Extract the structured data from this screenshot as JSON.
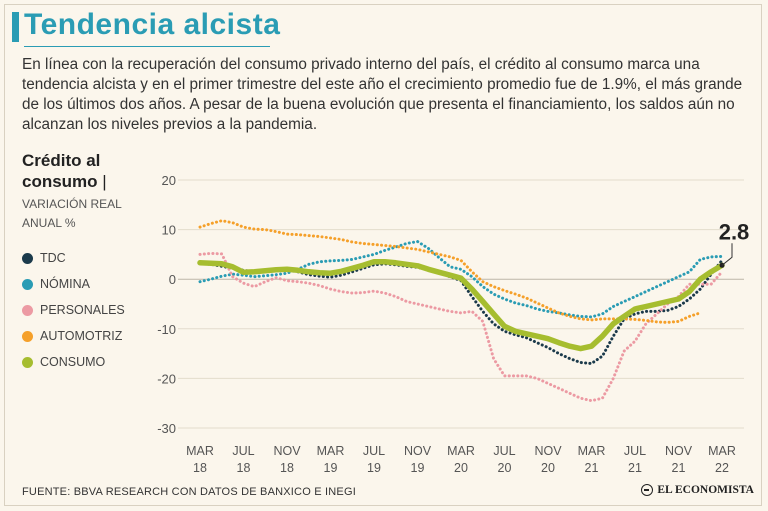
{
  "header": {
    "title": "Tendencia alcista",
    "intro": "En línea con la recuperación del consumo privado interno del país, el crédito al consumo marca una tendencia alcista y en el primer trimestre del este año el crecimiento promedio fue de 1.9%, el más grande de los últimos dos años. A pesar de la buena evolución que presenta el financiamiento, los saldos aún no alcanzan los niveles previos a la pandemia."
  },
  "side": {
    "title_line1": "Crédito al",
    "title_line2": "consumo",
    "separator": "|",
    "subtitle_line1": "VARIACIÓN REAL",
    "subtitle_line2": "ANUAL %"
  },
  "legend": [
    {
      "label": "TDC",
      "color": "#1b3a4b"
    },
    {
      "label": "NÓMINA",
      "color": "#2a9cb4"
    },
    {
      "label": "PERSONALES",
      "color": "#ec9aa3"
    },
    {
      "label": "AUTOMOTRIZ",
      "color": "#f5a02a"
    },
    {
      "label": "CONSUMO",
      "color": "#a6bd2f"
    }
  ],
  "footer": {
    "source": "FUENTE: BBVA RESEARCH CON DATOS DE BANXICO E INEGI",
    "brand": "EL ECONOMISTA"
  },
  "chart_data": {
    "type": "line",
    "title": "Crédito al consumo",
    "ylabel": "Variación real anual %",
    "ylim": [
      -30,
      20
    ],
    "yticks": [
      20,
      10,
      0,
      -10,
      -20,
      -30
    ],
    "xlim": [
      0,
      48
    ],
    "xticks": [
      {
        "pos": 0,
        "l1": "MAR",
        "l2": "18"
      },
      {
        "pos": 4,
        "l1": "JUL",
        "l2": "18"
      },
      {
        "pos": 8,
        "l1": "NOV",
        "l2": "18"
      },
      {
        "pos": 12,
        "l1": "MAR",
        "l2": "19"
      },
      {
        "pos": 16,
        "l1": "JUL",
        "l2": "19"
      },
      {
        "pos": 20,
        "l1": "NOV",
        "l2": "19"
      },
      {
        "pos": 24,
        "l1": "MAR",
        "l2": "20"
      },
      {
        "pos": 28,
        "l1": "JUL",
        "l2": "20"
      },
      {
        "pos": 32,
        "l1": "NOV",
        "l2": "20"
      },
      {
        "pos": 36,
        "l1": "MAR",
        "l2": "21"
      },
      {
        "pos": 40,
        "l1": "JUL",
        "l2": "21"
      },
      {
        "pos": 44,
        "l1": "NOV",
        "l2": "21"
      },
      {
        "pos": 48,
        "l1": "MAR",
        "l2": "22"
      }
    ],
    "annotation": {
      "text": "2.8",
      "series": "CONSUMO",
      "x": 48,
      "y": 2.8
    },
    "series": [
      {
        "name": "TDC",
        "color": "#1b3a4b",
        "style": "dotted",
        "x": [
          0,
          1,
          2,
          3,
          4,
          5,
          6,
          7,
          8,
          9,
          10,
          11,
          12,
          13,
          14,
          15,
          16,
          17,
          18,
          19,
          20,
          21,
          22,
          23,
          24,
          25,
          26,
          27,
          28,
          29,
          30,
          31,
          32,
          33,
          34,
          35,
          36,
          37,
          38,
          39,
          40,
          41,
          42,
          43,
          44,
          45,
          46,
          47,
          48
        ],
        "y": [
          3.2,
          3.0,
          2.6,
          2.2,
          1.8,
          1.5,
          1.6,
          1.8,
          1.9,
          1.5,
          0.9,
          0.6,
          0.4,
          0.8,
          1.5,
          2.2,
          2.9,
          3.1,
          2.9,
          2.6,
          2.4,
          1.9,
          1.2,
          0.5,
          -0.3,
          -3.5,
          -6.5,
          -9.0,
          -10.5,
          -11.2,
          -11.8,
          -12.8,
          -13.8,
          -15.0,
          -16.0,
          -16.8,
          -17.0,
          -15.5,
          -11.5,
          -8.0,
          -7.0,
          -6.5,
          -6.5,
          -6.3,
          -5.5,
          -4.0,
          -2.0,
          1.0,
          3.8
        ]
      },
      {
        "name": "NÓMINA",
        "color": "#2a9cb4",
        "style": "dotted",
        "x": [
          0,
          1,
          2,
          3,
          4,
          5,
          6,
          7,
          8,
          9,
          10,
          11,
          12,
          13,
          14,
          15,
          16,
          17,
          18,
          19,
          20,
          21,
          22,
          23,
          24,
          25,
          26,
          27,
          28,
          29,
          30,
          31,
          32,
          33,
          34,
          35,
          36,
          37,
          38,
          39,
          40,
          41,
          42,
          43,
          44,
          45,
          46,
          47,
          48
        ],
        "y": [
          -0.5,
          0.0,
          0.6,
          1.0,
          0.8,
          0.5,
          0.7,
          0.9,
          1.2,
          2.0,
          3.0,
          3.5,
          3.7,
          3.8,
          4.0,
          4.5,
          5.0,
          5.8,
          6.5,
          7.2,
          7.6,
          6.2,
          4.3,
          2.5,
          2.0,
          0.5,
          -1.5,
          -3.0,
          -4.0,
          -4.8,
          -5.3,
          -6.0,
          -6.5,
          -6.8,
          -7.2,
          -7.5,
          -7.6,
          -7.0,
          -5.5,
          -4.5,
          -3.5,
          -2.5,
          -1.5,
          -0.5,
          0.5,
          1.5,
          4.0,
          4.5,
          4.6
        ]
      },
      {
        "name": "PERSONALES",
        "color": "#ec9aa3",
        "style": "dotted",
        "x": [
          0,
          1,
          2,
          3,
          4,
          5,
          6,
          7,
          8,
          9,
          10,
          11,
          12,
          13,
          14,
          15,
          16,
          17,
          18,
          19,
          20,
          21,
          22,
          23,
          24,
          25,
          26,
          27,
          28,
          29,
          30,
          31,
          32,
          33,
          34,
          35,
          36,
          37,
          38,
          39,
          40,
          41,
          42,
          43,
          44,
          45,
          46,
          47,
          48
        ],
        "y": [
          5.0,
          5.2,
          5.1,
          0.5,
          -0.8,
          -1.5,
          -0.5,
          0.3,
          -0.3,
          -0.5,
          -0.8,
          -1.3,
          -2.0,
          -2.5,
          -2.8,
          -2.7,
          -2.4,
          -2.8,
          -3.5,
          -4.5,
          -5.0,
          -5.5,
          -6.0,
          -6.5,
          -6.8,
          -6.5,
          -8.5,
          -16.0,
          -19.5,
          -19.5,
          -19.5,
          -20.0,
          -21.0,
          -22.0,
          -23.0,
          -24.0,
          -24.5,
          -24.0,
          -20.0,
          -14.5,
          -12.5,
          -9.0,
          -7.0,
          -5.0,
          -3.5,
          -1.0,
          -1.0,
          -1.0,
          1.5
        ]
      },
      {
        "name": "AUTOMOTRIZ",
        "color": "#f5a02a",
        "style": "dotted",
        "x": [
          0,
          1,
          2,
          3,
          4,
          5,
          6,
          7,
          8,
          9,
          10,
          11,
          12,
          13,
          14,
          15,
          16,
          17,
          18,
          19,
          20,
          21,
          22,
          23,
          24,
          25,
          26,
          27,
          28,
          29,
          30,
          31,
          32,
          33,
          34,
          35,
          36,
          37,
          38,
          39,
          40,
          41,
          42,
          43,
          44,
          45,
          46
        ],
        "y": [
          10.5,
          11.2,
          11.8,
          11.4,
          10.5,
          10.1,
          10.0,
          9.6,
          9.1,
          9.0,
          8.8,
          8.6,
          8.3,
          8.0,
          7.5,
          7.2,
          7.0,
          6.8,
          6.6,
          6.3,
          6.0,
          5.5,
          5.0,
          4.5,
          3.8,
          1.5,
          -0.5,
          -1.5,
          -2.3,
          -3.0,
          -3.8,
          -4.8,
          -5.8,
          -6.8,
          -7.5,
          -8.0,
          -8.2,
          -8.0,
          -8.0,
          -8.0,
          -8.1,
          -8.3,
          -8.6,
          -8.7,
          -8.5,
          -7.5,
          -6.8
        ]
      },
      {
        "name": "CONSUMO",
        "color": "#a6bd2f",
        "style": "solid",
        "x": [
          0,
          1,
          2,
          3,
          4,
          5,
          6,
          7,
          8,
          9,
          10,
          11,
          12,
          13,
          14,
          15,
          16,
          17,
          18,
          19,
          20,
          21,
          22,
          23,
          24,
          25,
          26,
          27,
          28,
          29,
          30,
          31,
          32,
          33,
          34,
          35,
          36,
          37,
          38,
          39,
          40,
          41,
          42,
          43,
          44,
          45,
          46,
          47,
          48
        ],
        "y": [
          3.3,
          3.2,
          3.1,
          2.5,
          1.4,
          1.5,
          1.7,
          1.9,
          2.0,
          1.8,
          1.5,
          1.3,
          1.2,
          1.6,
          2.2,
          2.8,
          3.5,
          3.5,
          3.3,
          3.0,
          2.7,
          2.0,
          1.4,
          0.8,
          0.2,
          -2.0,
          -4.5,
          -7.0,
          -9.5,
          -10.5,
          -11.0,
          -11.5,
          -12.0,
          -12.8,
          -13.5,
          -14.0,
          -13.5,
          -11.5,
          -9.0,
          -7.5,
          -6.0,
          -5.5,
          -5.0,
          -4.5,
          -4.0,
          -2.5,
          0.0,
          1.5,
          2.8
        ]
      }
    ]
  }
}
